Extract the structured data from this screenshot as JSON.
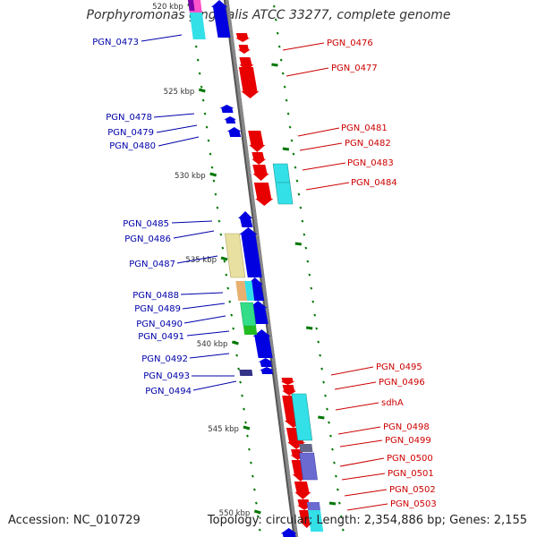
{
  "title": "Porphyromonas gingivalis ATCC 33277, complete genome",
  "footer": {
    "accession": "Accession: NC_010729",
    "topology": "Topology: circular; Length: 2,354,886 bp; Genes: 2,155"
  },
  "colors": {
    "forward": "#e80000",
    "reverse": "#0000e0",
    "label_forward": "#cc0000",
    "label_reverse": "#0000aa",
    "backbone": "#888888",
    "tick": "#007700",
    "cyan": "#33e0e8",
    "slate": "#6a6ad0",
    "khaki": "#e8e0a0",
    "green": "#33dd88",
    "pink": "#ff55cc"
  },
  "scale": {
    "labels": [
      "520 kbp",
      "525 kbp",
      "530 kbp",
      "535 kbp",
      "540 kbp",
      "545 kbp",
      "550 kbp"
    ]
  },
  "genes": {
    "forward": [
      "PGN_0476",
      "PGN_0477",
      "PGN_0481",
      "PGN_0482",
      "PGN_0483",
      "PGN_0484",
      "PGN_0495",
      "PGN_0496",
      "sdhA",
      "PGN_0498",
      "PGN_0499",
      "PGN_0500",
      "PGN_0501",
      "PGN_0502",
      "PGN_0503"
    ],
    "reverse": [
      "PGN_0473",
      "PGN_0478",
      "PGN_0479",
      "PGN_0480",
      "PGN_0485",
      "PGN_0486",
      "PGN_0487",
      "PGN_0488",
      "PGN_0489",
      "PGN_0490",
      "PGN_0491",
      "PGN_0492",
      "PGN_0493",
      "PGN_0494"
    ]
  }
}
